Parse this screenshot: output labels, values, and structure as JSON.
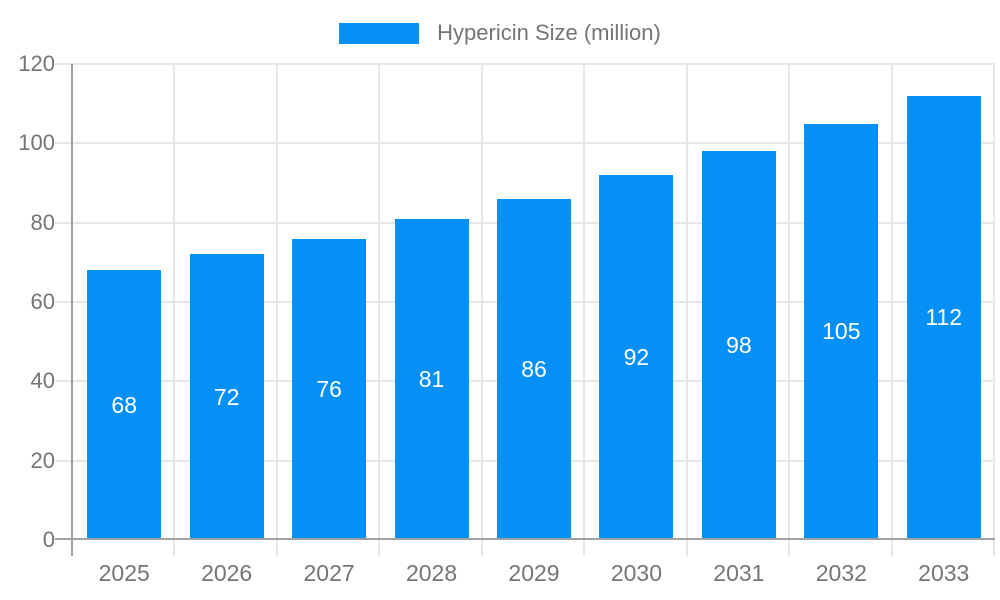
{
  "legend": {
    "items": [
      {
        "label": "Hypericin Size (million)",
        "color": "#0590f8"
      }
    ]
  },
  "chart_data": {
    "type": "bar",
    "title": "Hypericin Size (million)",
    "categories": [
      "2025",
      "2026",
      "2027",
      "2028",
      "2029",
      "2030",
      "2031",
      "2032",
      "2033"
    ],
    "values": [
      68,
      72,
      76,
      81,
      86,
      92,
      98,
      105,
      112
    ],
    "series_name": "Hypericin Size (million)",
    "xlabel": "",
    "ylabel": "",
    "ylim": [
      0,
      120
    ],
    "yticks": [
      0,
      20,
      40,
      60,
      80,
      100,
      120
    ],
    "grid": true,
    "legend_position": "top-center",
    "value_labels": "inside-center",
    "bar_color": "#0590f8",
    "value_label_color": "#ffffff",
    "axis_color": "#a0a0a0",
    "grid_color": "#e7e7e7",
    "tick_label_color": "#757575"
  }
}
